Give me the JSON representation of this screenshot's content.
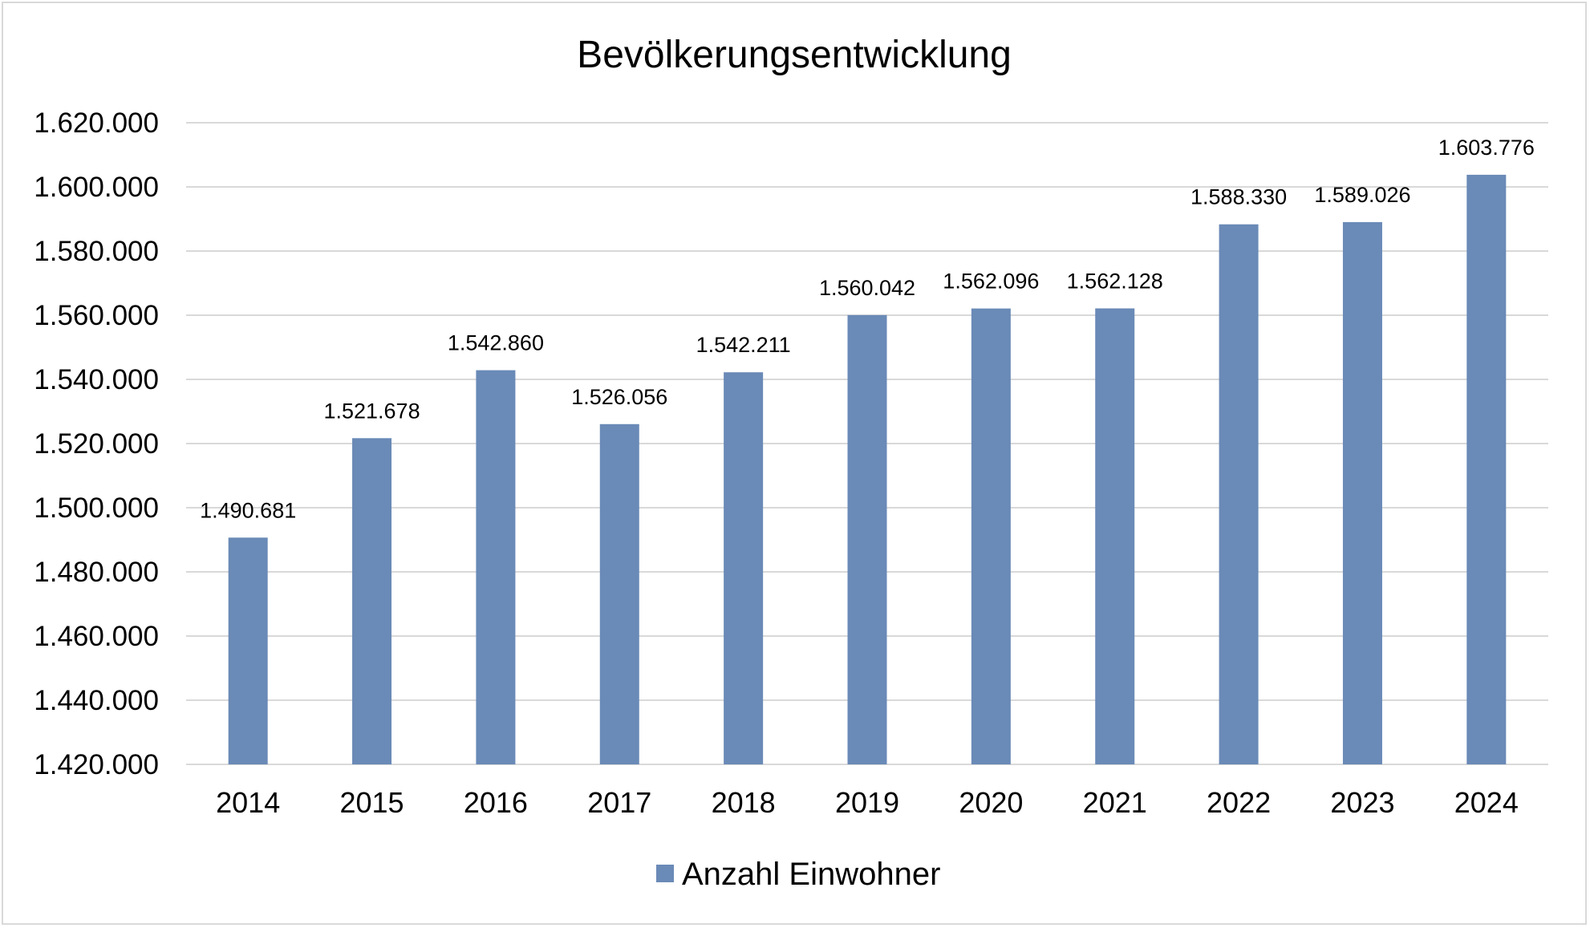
{
  "chart_data": {
    "type": "bar",
    "title": "Bevölkerungsentwicklung",
    "xlabel": "",
    "ylabel": "",
    "categories": [
      "2014",
      "2015",
      "2016",
      "2017",
      "2018",
      "2019",
      "2020",
      "2021",
      "2022",
      "2023",
      "2024"
    ],
    "series": [
      {
        "name": "Anzahl Einwohner",
        "values": [
          1490681,
          1521678,
          1542860,
          1526056,
          1542211,
          1560042,
          1562096,
          1562128,
          1588330,
          1589026,
          1603776
        ],
        "labels": [
          "1.490.681",
          "1.521.678",
          "1.542.860",
          "1.526.056",
          "1.542.211",
          "1.560.042",
          "1.562.096",
          "1.562.128",
          "1.588.330",
          "1.589.026",
          "1.603.776"
        ],
        "color": "#6a8ab7"
      }
    ],
    "ylim": [
      1420000,
      1620000
    ],
    "yticks": [
      1420000,
      1440000,
      1460000,
      1480000,
      1500000,
      1520000,
      1540000,
      1560000,
      1580000,
      1600000,
      1620000
    ],
    "ytick_labels": [
      "1.420.000",
      "1.440.000",
      "1.460.000",
      "1.480.000",
      "1.500.000",
      "1.520.000",
      "1.540.000",
      "1.560.000",
      "1.580.000",
      "1.600.000",
      "1.620.000"
    ],
    "grid": true,
    "grid_color": "#d9d9d9",
    "legend": "bottom-center"
  }
}
